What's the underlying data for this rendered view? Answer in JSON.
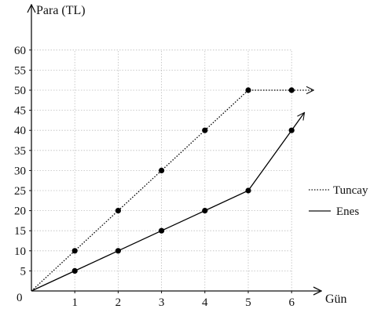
{
  "chart_data": {
    "type": "line",
    "xlabel": "Gün",
    "ylabel": "Para (TL)",
    "x_ticks": [
      "1",
      "2",
      "3",
      "4",
      "5",
      "6"
    ],
    "y_ticks": [
      "5",
      "10",
      "15",
      "20",
      "25",
      "30",
      "35",
      "40",
      "45",
      "50",
      "55",
      "60"
    ],
    "origin_label": "0",
    "xlim": [
      0,
      6
    ],
    "ylim": [
      0,
      60
    ],
    "grid": true,
    "legend_position": "right",
    "series": [
      {
        "name": "Tuncay",
        "style": "dotted",
        "color": "#000000",
        "x": [
          0,
          1,
          2,
          3,
          4,
          5,
          6
        ],
        "y": [
          0,
          10,
          20,
          30,
          40,
          50,
          50
        ],
        "marked_x": [
          1,
          2,
          3,
          4,
          5,
          6
        ]
      },
      {
        "name": "Enes",
        "style": "solid",
        "color": "#000000",
        "x": [
          0,
          1,
          2,
          3,
          4,
          5,
          6
        ],
        "y": [
          0,
          5,
          10,
          15,
          20,
          25,
          40
        ],
        "marked_x": [
          1,
          2,
          3,
          4,
          5,
          6
        ]
      }
    ]
  }
}
